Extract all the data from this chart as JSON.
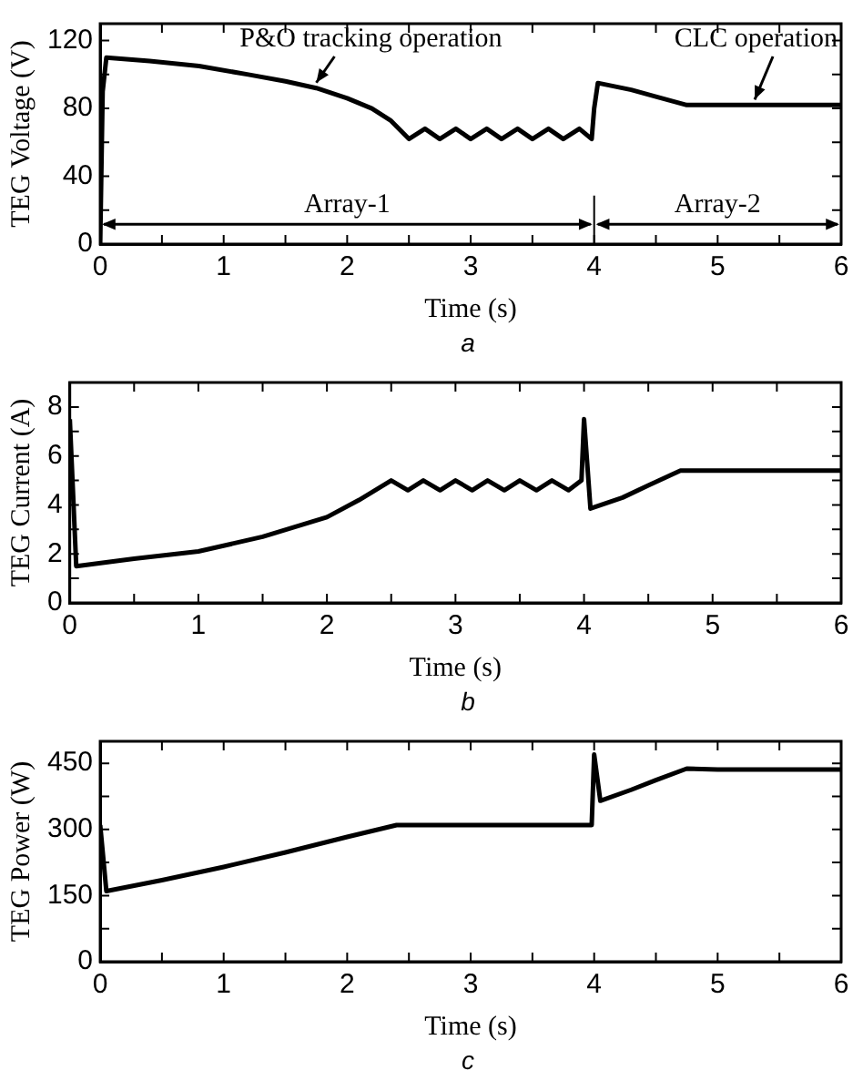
{
  "chart_data": [
    {
      "type": "line",
      "xlabel": "Time (s)",
      "ylabel": "TEG Voltage (V)",
      "xlim": [
        0,
        6
      ],
      "ylim": [
        0,
        130
      ],
      "xticks": [
        0,
        {
          "value": 0.5,
          "label": null
        },
        1,
        {
          "value": 1.5,
          "label": null
        },
        2,
        {
          "value": 2.5,
          "label": null
        },
        3,
        {
          "value": 3.5,
          "label": null
        },
        4,
        {
          "value": 4.5,
          "label": null
        },
        5,
        {
          "value": 5.5,
          "label": null
        },
        6
      ],
      "yticks": [
        0,
        {
          "value": 20,
          "label": null
        },
        40,
        {
          "value": 60,
          "label": null
        },
        80,
        {
          "value": 100,
          "label": null
        },
        120
      ],
      "series": [
        {
          "color": "#000000",
          "x": [
            0,
            0.02,
            0.05,
            0.4,
            0.8,
            1.2,
            1.5,
            1.75,
            2.0,
            2.2,
            2.35,
            2.5,
            2.63,
            2.75,
            2.88,
            3.0,
            3.13,
            3.25,
            3.38,
            3.5,
            3.63,
            3.75,
            3.88,
            3.98,
            4.0,
            4.03,
            4.3,
            4.5,
            4.75,
            5.0,
            5.5,
            6.0
          ],
          "values": [
            0,
            90,
            110,
            108,
            105,
            100,
            96,
            92,
            86,
            80,
            73,
            62,
            68,
            62,
            68,
            62,
            68,
            62,
            68,
            62,
            68,
            62,
            68,
            62,
            80,
            95,
            91,
            87,
            82,
            82,
            82,
            82
          ]
        }
      ],
      "ref_lines": [
        {
          "axis": "x",
          "value": 4
        }
      ],
      "annotations": [
        {
          "text": "P&O tracking operation",
          "x": 1.75,
          "y": 92
        },
        {
          "text": "CLC operation",
          "x": 5.3,
          "y": 82
        },
        "Array-1",
        "Array-2",
        "a"
      ],
      "marker": "none",
      "line_style": "solid",
      "grid": false,
      "legend": false
    },
    {
      "type": "line",
      "xlabel": "Time (s)",
      "ylabel": "TEG Current (A)",
      "xlim": [
        0,
        6
      ],
      "ylim": [
        0,
        9
      ],
      "xticks": [
        0,
        {
          "value": 0.5,
          "label": null
        },
        1,
        {
          "value": 1.5,
          "label": null
        },
        2,
        {
          "value": 2.5,
          "label": null
        },
        3,
        {
          "value": 3.5,
          "label": null
        },
        4,
        {
          "value": 4.5,
          "label": null
        },
        5,
        {
          "value": 5.5,
          "label": null
        },
        6
      ],
      "yticks": [
        0,
        {
          "value": 1,
          "label": null
        },
        2,
        {
          "value": 3,
          "label": null
        },
        4,
        {
          "value": 5,
          "label": null
        },
        6,
        {
          "value": 7,
          "label": null
        },
        8
      ],
      "series": [
        {
          "color": "#000000",
          "x": [
            0,
            0.05,
            0.5,
            1.0,
            1.5,
            2.0,
            2.25,
            2.5,
            2.63,
            2.75,
            2.88,
            3.0,
            3.13,
            3.25,
            3.38,
            3.5,
            3.63,
            3.75,
            3.88,
            3.98,
            4.0,
            4.05,
            4.3,
            4.5,
            4.75,
            5.0,
            5.5,
            6.0
          ],
          "values": [
            7.5,
            1.5,
            1.8,
            2.1,
            2.7,
            3.5,
            4.2,
            5.0,
            4.6,
            5.0,
            4.6,
            5.0,
            4.6,
            5.0,
            4.6,
            5.0,
            4.6,
            5.0,
            4.6,
            5.0,
            7.5,
            3.85,
            4.3,
            4.8,
            5.4,
            5.4,
            5.4,
            5.4
          ]
        }
      ],
      "annotations": [
        "b"
      ],
      "marker": "none",
      "line_style": "solid",
      "grid": false,
      "legend": false
    },
    {
      "type": "line",
      "xlabel": "Time (s)",
      "ylabel": "TEG Power (W)",
      "xlim": [
        0,
        6
      ],
      "ylim": [
        0,
        500
      ],
      "xticks": [
        0,
        {
          "value": 0.5,
          "label": null
        },
        1,
        {
          "value": 1.5,
          "label": null
        },
        2,
        {
          "value": 2.5,
          "label": null
        },
        3,
        {
          "value": 3.5,
          "label": null
        },
        4,
        {
          "value": 4.5,
          "label": null
        },
        5,
        {
          "value": 5.5,
          "label": null
        },
        6
      ],
      "yticks": [
        0,
        {
          "value": 75,
          "label": null
        },
        150,
        {
          "value": 225,
          "label": null
        },
        300,
        {
          "value": 375,
          "label": null
        },
        450
      ],
      "series": [
        {
          "color": "#000000",
          "x": [
            0,
            0.05,
            0.5,
            1.0,
            1.5,
            2.0,
            2.4,
            3.0,
            3.5,
            3.98,
            4.0,
            4.05,
            4.3,
            4.5,
            4.75,
            5.0,
            5.5,
            6.0
          ],
          "values": [
            310,
            160,
            185,
            215,
            248,
            283,
            310,
            310,
            310,
            310,
            470,
            365,
            390,
            412,
            438,
            436,
            436,
            436
          ]
        }
      ],
      "annotations": [
        "c"
      ],
      "marker": "none",
      "line_style": "solid",
      "grid": false,
      "legend": false
    }
  ]
}
